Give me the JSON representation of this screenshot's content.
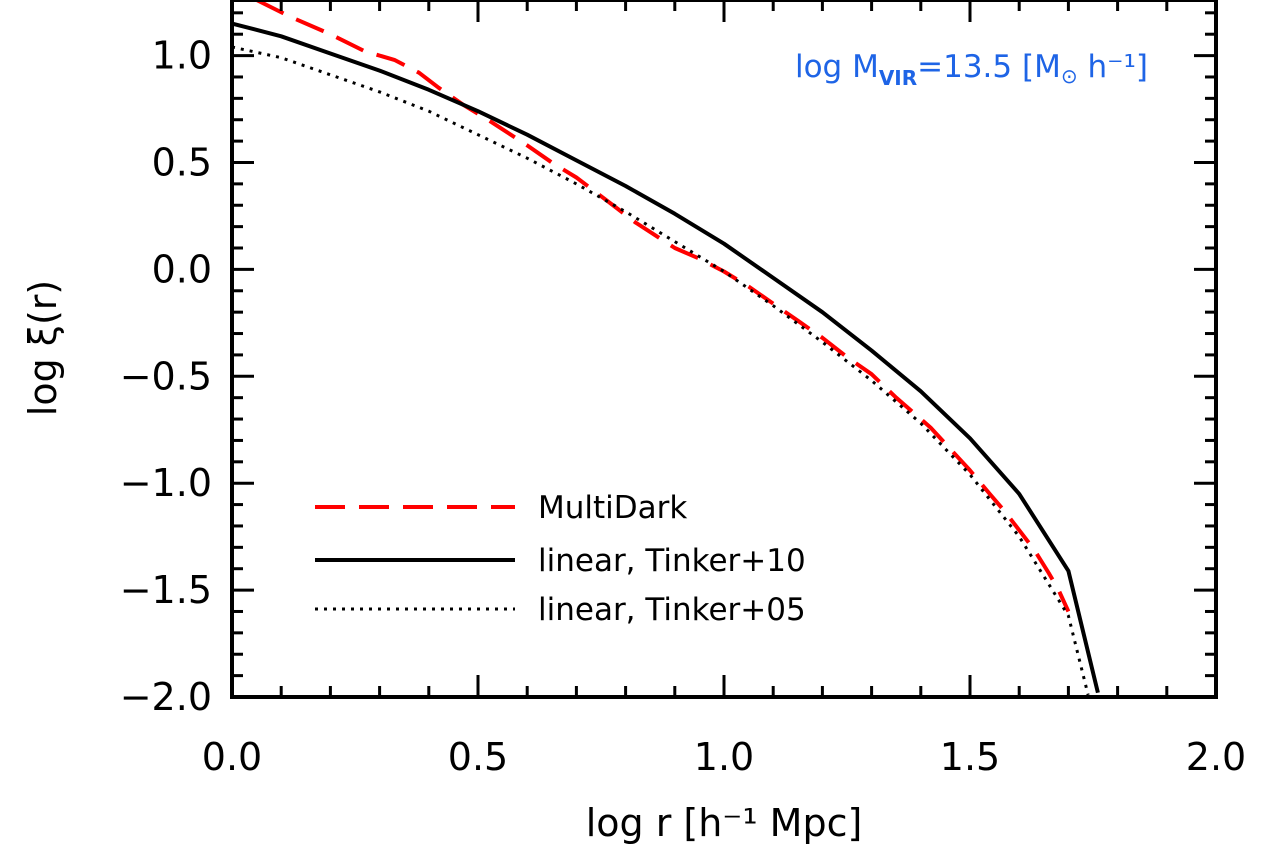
{
  "chart_data": {
    "type": "line",
    "xlabel": "log r [h⁻¹ Mpc]",
    "ylabel": "log ξ(r)",
    "xlim": [
      0.0,
      2.0
    ],
    "ylim": [
      -2.0,
      1.26
    ],
    "x_ticks": [
      "0.0",
      "0.5",
      "1.0",
      "1.5",
      "2.0"
    ],
    "y_ticks": [
      "1.0",
      "0.5",
      "0.0",
      "−0.5",
      "−1.0",
      "−1.5",
      "−2.0"
    ],
    "x_tick_values": [
      0.0,
      0.5,
      1.0,
      1.5,
      2.0
    ],
    "y_tick_values": [
      1.0,
      0.5,
      0.0,
      -0.5,
      -1.0,
      -1.5,
      -2.0
    ],
    "grid": false,
    "legend_position": "bottom-left",
    "annotation": {
      "prefix": "log M",
      "subscript": "VIR",
      "value": "=13.5 [M",
      "sun": "⊙",
      "suffix": " h⁻¹]",
      "color": "#1E64E6"
    },
    "series": [
      {
        "name": "MultiDark",
        "style": "dashed",
        "color": "#FF0000",
        "x": [
          0.05,
          0.12,
          0.2,
          0.27,
          0.33,
          0.38,
          0.42,
          0.47,
          0.52,
          0.6,
          0.65,
          0.7,
          0.74,
          0.78,
          0.82,
          0.86,
          0.9,
          0.95,
          1.0,
          1.05,
          1.1,
          1.15,
          1.2,
          1.25,
          1.3,
          1.35,
          1.38,
          1.42,
          1.46,
          1.5,
          1.54,
          1.57,
          1.6,
          1.63,
          1.66,
          1.68,
          1.7
        ],
        "y": [
          1.26,
          1.18,
          1.1,
          1.02,
          0.98,
          0.92,
          0.85,
          0.77,
          0.7,
          0.58,
          0.5,
          0.43,
          0.36,
          0.29,
          0.22,
          0.16,
          0.1,
          0.05,
          -0.01,
          -0.08,
          -0.16,
          -0.24,
          -0.32,
          -0.41,
          -0.49,
          -0.6,
          -0.66,
          -0.74,
          -0.84,
          -0.94,
          -1.05,
          -1.13,
          -1.22,
          -1.31,
          -1.42,
          -1.5,
          -1.6
        ]
      },
      {
        "name": "linear, Tinker+10",
        "style": "solid",
        "color": "#000000",
        "x": [
          0.0,
          0.1,
          0.2,
          0.3,
          0.4,
          0.5,
          0.6,
          0.7,
          0.8,
          0.9,
          1.0,
          1.1,
          1.2,
          1.3,
          1.4,
          1.5,
          1.6,
          1.7,
          1.76
        ],
        "y": [
          1.15,
          1.09,
          1.01,
          0.93,
          0.84,
          0.74,
          0.63,
          0.51,
          0.39,
          0.26,
          0.12,
          -0.04,
          -0.2,
          -0.38,
          -0.57,
          -0.79,
          -1.05,
          -1.41,
          -1.98
        ]
      },
      {
        "name": "linear, Tinker+05",
        "style": "dotted",
        "color": "#000000",
        "x": [
          0.0,
          0.1,
          0.2,
          0.3,
          0.4,
          0.5,
          0.6,
          0.7,
          0.8,
          0.9,
          1.0,
          1.1,
          1.2,
          1.3,
          1.4,
          1.5,
          1.6,
          1.7,
          1.74
        ],
        "y": [
          1.04,
          0.99,
          0.91,
          0.83,
          0.74,
          0.63,
          0.52,
          0.4,
          0.27,
          0.13,
          -0.01,
          -0.17,
          -0.34,
          -0.52,
          -0.72,
          -0.96,
          -1.25,
          -1.62,
          -1.99
        ]
      }
    ]
  }
}
